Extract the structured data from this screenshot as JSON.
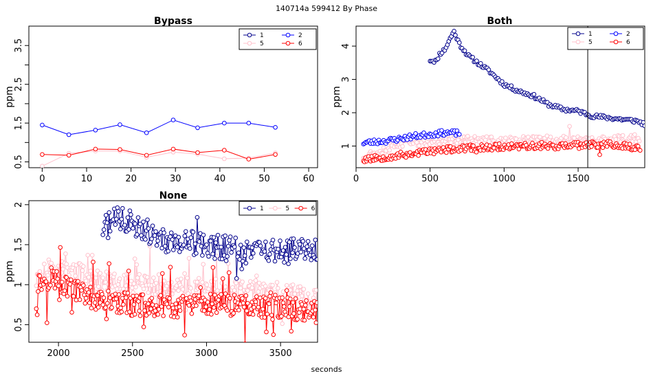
{
  "figure": {
    "title": "140714a   599412   By Phase",
    "xlabel": "seconds"
  },
  "series_colors": {
    "1": "#00008b",
    "2": "#0000ff",
    "5": "#ffc0cb",
    "6": "#ff0000"
  },
  "chart_data": [
    {
      "type": "line",
      "title": "Bypass",
      "xlabel": "",
      "ylabel": "ppm",
      "xlim": [
        -3,
        62
      ],
      "ylim": [
        0.35,
        4.0
      ],
      "xticks": [
        0,
        10,
        20,
        30,
        40,
        50,
        60
      ],
      "yticks": [
        0.5,
        1.5,
        2.5,
        3.5
      ],
      "yticks_minor": [
        1.0,
        2.0,
        3.0
      ],
      "legend": [
        "1",
        "5",
        "2",
        "6"
      ],
      "legend_position": "top-right",
      "series": [
        {
          "name": "2",
          "color": "#0000ff",
          "x": [
            0,
            6,
            12,
            17.5,
            23.5,
            29.5,
            35,
            41,
            46.5,
            52.5
          ],
          "y": [
            1.45,
            1.2,
            1.32,
            1.46,
            1.25,
            1.58,
            1.38,
            1.5,
            1.5,
            1.39
          ]
        },
        {
          "name": "5",
          "color": "#ffc0cb",
          "x": [
            0,
            6,
            12,
            17.5,
            23.5,
            29.5,
            35,
            41,
            46.5,
            52.5
          ],
          "y": [
            0.39,
            0.72,
            0.78,
            0.78,
            0.62,
            0.75,
            0.7,
            0.58,
            0.6,
            0.73
          ]
        },
        {
          "name": "6",
          "color": "#ff0000",
          "x": [
            0,
            6,
            12,
            17.5,
            23.5,
            29.5,
            35,
            41,
            46.5,
            52.5
          ],
          "y": [
            0.69,
            0.67,
            0.83,
            0.82,
            0.67,
            0.83,
            0.74,
            0.8,
            0.57,
            0.69
          ]
        }
      ]
    },
    {
      "type": "line",
      "title": "Both",
      "xlabel": "",
      "ylabel": "ppm",
      "xlim": [
        0,
        1950
      ],
      "ylim": [
        0.35,
        4.6
      ],
      "xticks": [
        0,
        500,
        1000,
        1500
      ],
      "yticks": [
        1,
        2,
        3,
        4
      ],
      "vline": 1565,
      "legend": [
        "1",
        "5",
        "2",
        "6"
      ],
      "legend_position": "top-right",
      "generated": [
        {
          "name": "1",
          "color": "#00008b",
          "x_start": 500,
          "x_end": 1950,
          "step": 9,
          "keys": [
            [
              500,
              3.58
            ],
            [
              545,
              3.55
            ],
            [
              560,
              3.75
            ],
            [
              600,
              3.9
            ],
            [
              660,
              4.45
            ],
            [
              700,
              4.05
            ],
            [
              760,
              3.7
            ],
            [
              900,
              3.25
            ],
            [
              1000,
              2.85
            ],
            [
              1100,
              2.65
            ],
            [
              1200,
              2.5
            ],
            [
              1300,
              2.25
            ],
            [
              1400,
              2.1
            ],
            [
              1500,
              2.05
            ],
            [
              1600,
              1.9
            ],
            [
              1700,
              1.85
            ],
            [
              1800,
              1.8
            ],
            [
              1900,
              1.75
            ],
            [
              1950,
              1.65
            ]
          ],
          "amp": 0.06,
          "seed": 11,
          "jump": 0
        },
        {
          "name": "2",
          "color": "#0000ff",
          "x_start": 50,
          "x_end": 700,
          "step": 8,
          "keys": [
            [
              50,
              1.1
            ],
            [
              200,
              1.15
            ],
            [
              300,
              1.22
            ],
            [
              400,
              1.3
            ],
            [
              500,
              1.35
            ],
            [
              600,
              1.4
            ],
            [
              700,
              1.38
            ]
          ],
          "amp": 0.08,
          "seed": 23,
          "jump": 0
        },
        {
          "name": "5",
          "color": "#ffc0cb",
          "x_start": 50,
          "x_end": 1920,
          "step": 8,
          "keys": [
            [
              50,
              0.7
            ],
            [
              250,
              1.0
            ],
            [
              400,
              1.1
            ],
            [
              700,
              1.2
            ],
            [
              1000,
              1.15
            ],
            [
              1300,
              1.2
            ],
            [
              1600,
              1.15
            ],
            [
              1920,
              1.25
            ]
          ],
          "amp": 0.12,
          "seed": 37,
          "jump": 0.02
        },
        {
          "name": "6",
          "color": "#ff0000",
          "x_start": 50,
          "x_end": 1920,
          "step": 7,
          "keys": [
            [
              50,
              0.6
            ],
            [
              300,
              0.72
            ],
            [
              500,
              0.85
            ],
            [
              800,
              0.95
            ],
            [
              1100,
              1.0
            ],
            [
              1400,
              1.0
            ],
            [
              1700,
              1.05
            ],
            [
              1920,
              0.95
            ]
          ],
          "amp": 0.1,
          "seed": 53,
          "jump": 0.02
        }
      ]
    },
    {
      "type": "line",
      "title": "None",
      "xlabel": "",
      "ylabel": "ppm",
      "xlim": [
        1800,
        3750
      ],
      "ylim": [
        0.28,
        2.05
      ],
      "xticks": [
        2000,
        2500,
        3000,
        3500
      ],
      "yticks": [
        0.5,
        1.0,
        1.5,
        2.0
      ],
      "legend": [
        "1",
        "5",
        "6"
      ],
      "legend_position": "top-right",
      "generated": [
        {
          "name": "1",
          "color": "#00008b",
          "x_start": 2300,
          "x_end": 3750,
          "step": 7,
          "keys": [
            [
              2300,
              1.7
            ],
            [
              2400,
              1.82
            ],
            [
              2550,
              1.75
            ],
            [
              2700,
              1.55
            ],
            [
              3000,
              1.5
            ],
            [
              3300,
              1.42
            ],
            [
              3500,
              1.4
            ],
            [
              3750,
              1.45
            ]
          ],
          "amp": 0.16,
          "seed": 71,
          "jump": 0.05
        },
        {
          "name": "5",
          "color": "#ffc0cb",
          "x_start": 1850,
          "x_end": 3750,
          "step": 6,
          "keys": [
            [
              1850,
              1.05
            ],
            [
              1950,
              1.2
            ],
            [
              2100,
              1.15
            ],
            [
              2300,
              1.05
            ],
            [
              2600,
              1.0
            ],
            [
              2900,
              0.95
            ],
            [
              3200,
              0.92
            ],
            [
              3500,
              0.9
            ],
            [
              3750,
              0.85
            ]
          ],
          "amp": 0.14,
          "seed": 89,
          "jump": 0.08
        },
        {
          "name": "6",
          "color": "#ff0000",
          "x_start": 1850,
          "x_end": 3750,
          "step": 6,
          "keys": [
            [
              1850,
              1.0
            ],
            [
              1950,
              1.1
            ],
            [
              2100,
              0.95
            ],
            [
              2250,
              0.8
            ],
            [
              2500,
              0.75
            ],
            [
              2800,
              0.72
            ],
            [
              3100,
              0.75
            ],
            [
              3400,
              0.72
            ],
            [
              3750,
              0.68
            ]
          ],
          "amp": 0.14,
          "seed": 97,
          "jump": 0.1
        }
      ]
    }
  ]
}
